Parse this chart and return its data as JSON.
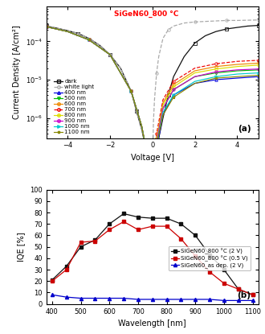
{
  "title_a": "SiGeN60_800 °C",
  "label_a": "(a)",
  "label_b": "(b)",
  "xlabel_a": "Voltage [V]",
  "ylabel_a": "Current Density [A/cm²]",
  "xlabel_b": "Wavelength [nm]",
  "ylabel_b": "IQE [%]",
  "xlim_a": [
    -5,
    5
  ],
  "ylim_a": [
    3e-07,
    0.0008
  ],
  "xlim_b": [
    380,
    1120
  ],
  "ylim_b": [
    0,
    100
  ],
  "dark_curve": {
    "V": [
      -5,
      -4.5,
      -4,
      -3.5,
      -3,
      -2.5,
      -2,
      -1.5,
      -1,
      -0.75,
      -0.5,
      -0.3,
      -0.2,
      -0.1,
      -0.05,
      0,
      0.05,
      0.1,
      0.2,
      0.3,
      0.5,
      0.75,
      1,
      1.5,
      2,
      2.5,
      3,
      3.5,
      4,
      4.5,
      5
    ],
    "J": [
      0.00025,
      0.00022,
      0.00019,
      0.00016,
      0.00012,
      8e-05,
      4.5e-05,
      2e-05,
      5e-06,
      1.5e-06,
      5e-07,
      1.5e-07,
      8e-08,
      5e-08,
      4e-08,
      3e-08,
      4e-08,
      6e-08,
      1.5e-07,
      3e-07,
      1e-06,
      4e-06,
      1.2e-05,
      4e-05,
      9e-05,
      0.00014,
      0.00018,
      0.00021,
      0.00023,
      0.00025,
      0.00026
    ],
    "color": "#111111",
    "marker": "s",
    "label": "dark",
    "linestyle": "-"
  },
  "white_curve": {
    "V": [
      -5,
      -4.5,
      -4,
      -3.5,
      -3,
      -2.5,
      -2,
      -1.5,
      -1,
      -0.75,
      -0.5,
      -0.3,
      -0.2,
      -0.1,
      -0.05,
      0,
      0.05,
      0.1,
      0.2,
      0.3,
      0.5,
      0.75,
      1,
      1.5,
      2,
      2.5,
      3,
      3.5,
      4,
      4.5,
      5
    ],
    "J": [
      0.00025,
      0.00022,
      0.00019,
      0.00016,
      0.00012,
      8e-05,
      4.5e-05,
      2e-05,
      5e-06,
      1.5e-06,
      5e-07,
      1.5e-07,
      8e-08,
      5e-08,
      4e-08,
      3e-08,
      8e-07,
      3e-06,
      1.5e-05,
      4e-05,
      0.00012,
      0.0002,
      0.00025,
      0.0003,
      0.00032,
      0.00033,
      0.00034,
      0.00035,
      0.00035,
      0.000355,
      0.00036
    ],
    "color": "#aaaaaa",
    "marker": "o",
    "label": "white light",
    "linestyle": "--"
  },
  "light_curves": [
    {
      "label": "400 nm",
      "color": "#0000dd",
      "V": [
        -5,
        -4,
        -3,
        -2,
        -1,
        -0.5,
        -0.2,
        0,
        0.2,
        0.5,
        1,
        2,
        3,
        4,
        5
      ],
      "J": [
        0.00024,
        0.00018,
        0.00011,
        4.5e-05,
        5e-06,
        6e-07,
        8e-08,
        4e-08,
        1.5e-07,
        1.2e-06,
        4e-06,
        8e-06,
        1e-05,
        1.1e-05,
        1.2e-05
      ],
      "marker": "^",
      "linestyle": "-"
    },
    {
      "label": "500 nm",
      "color": "#00bb00",
      "V": [
        -5,
        -4,
        -3,
        -2,
        -1,
        -0.5,
        -0.2,
        0,
        0.2,
        0.5,
        1,
        2,
        3,
        4,
        5
      ],
      "J": [
        0.00024,
        0.00018,
        0.00011,
        4.5e-05,
        5e-06,
        6e-07,
        8e-08,
        4e-08,
        2e-07,
        1.8e-06,
        5.5e-06,
        1.2e-05,
        1.5e-05,
        1.7e-05,
        1.8e-05
      ],
      "marker": "v",
      "linestyle": "-"
    },
    {
      "label": "600 nm",
      "color": "#ee8800",
      "V": [
        -5,
        -4,
        -3,
        -2,
        -1,
        -0.5,
        -0.2,
        0,
        0.2,
        0.5,
        1,
        2,
        3,
        4,
        5
      ],
      "J": [
        0.00024,
        0.00018,
        0.00011,
        4.5e-05,
        5e-06,
        6e-07,
        8e-08,
        4e-08,
        3e-07,
        2.5e-06,
        7.5e-06,
        1.7e-05,
        2.2e-05,
        2.5e-05,
        2.7e-05
      ],
      "marker": "o",
      "linestyle": "-"
    },
    {
      "label": "700 nm",
      "color": "#ee0000",
      "V": [
        -5,
        -4,
        -3,
        -2,
        -1,
        -0.5,
        -0.2,
        0,
        0.2,
        0.5,
        1,
        2,
        3,
        4,
        5
      ],
      "J": [
        0.00024,
        0.00018,
        0.00011,
        4.5e-05,
        5e-06,
        6e-07,
        8e-08,
        4e-08,
        4e-07,
        3e-06,
        9e-06,
        2e-05,
        2.6e-05,
        3e-05,
        3.2e-05
      ],
      "marker": "o",
      "linestyle": "--"
    },
    {
      "label": "800 nm",
      "color": "#dddd00",
      "V": [
        -5,
        -4,
        -3,
        -2,
        -1,
        -0.5,
        -0.2,
        0,
        0.2,
        0.5,
        1,
        2,
        3,
        4,
        5
      ],
      "J": [
        0.00024,
        0.00018,
        0.00011,
        4.5e-05,
        5e-06,
        6e-07,
        8e-08,
        4e-08,
        3e-07,
        2.2e-06,
        6.5e-06,
        1.5e-05,
        1.9e-05,
        2.2e-05,
        2.4e-05
      ],
      "marker": "o",
      "linestyle": "-"
    },
    {
      "label": "900 nm",
      "color": "#cc00cc",
      "V": [
        -5,
        -4,
        -3,
        -2,
        -1,
        -0.5,
        -0.2,
        0,
        0.2,
        0.5,
        1,
        2,
        3,
        4,
        5
      ],
      "J": [
        0.00024,
        0.00018,
        0.00011,
        4.5e-05,
        5e-06,
        6e-07,
        8e-08,
        4e-08,
        2.5e-07,
        1.8e-06,
        5.5e-06,
        1.2e-05,
        1.6e-05,
        1.8e-05,
        1.9e-05
      ],
      "marker": "o",
      "linestyle": "-"
    },
    {
      "label": "1000 nm",
      "color": "#00cccc",
      "V": [
        -5,
        -4,
        -3,
        -2,
        -1,
        -0.5,
        -0.2,
        0,
        0.2,
        0.5,
        1,
        2,
        3,
        4,
        5
      ],
      "J": [
        0.00024,
        0.00018,
        0.00011,
        4.5e-05,
        5e-06,
        6e-07,
        8e-08,
        4e-08,
        2e-07,
        1.4e-06,
        4e-06,
        9e-06,
        1.2e-05,
        1.4e-05,
        1.5e-05
      ],
      "marker": ">",
      "linestyle": "-"
    },
    {
      "label": "1100 nm",
      "color": "#888800",
      "V": [
        -5,
        -4,
        -3,
        -2,
        -1,
        -0.5,
        -0.2,
        0,
        0.2,
        0.5,
        1,
        2,
        3,
        4,
        5
      ],
      "J": [
        0.00024,
        0.00018,
        0.00011,
        4.5e-05,
        5e-06,
        6e-07,
        8e-08,
        4e-08,
        2e-07,
        1.2e-06,
        3.5e-06,
        8e-06,
        1.1e-05,
        1.2e-05,
        1.3e-05
      ],
      "marker": "*",
      "linestyle": "-"
    }
  ],
  "iqe_data": {
    "wavelengths": [
      400,
      450,
      500,
      550,
      600,
      650,
      700,
      750,
      800,
      850,
      900,
      950,
      1000,
      1050,
      1100
    ],
    "series": [
      {
        "label": "SiGeN60_800 °C (2 V)",
        "color": "#111111",
        "marker": "s",
        "linestyle": "-",
        "values": [
          21,
          33,
          50,
          56,
          70,
          79,
          76,
          75,
          75,
          70,
          60,
          43,
          30,
          13,
          8
        ]
      },
      {
        "label": "SiGeN60_800 °C (0.5 V)",
        "color": "#cc0000",
        "marker": "s",
        "linestyle": "-",
        "values": [
          20,
          30,
          54,
          55,
          65,
          72,
          65,
          68,
          68,
          57,
          42,
          28,
          18,
          13,
          8
        ]
      },
      {
        "label": "SiGeN60_as dep. (2 V)",
        "color": "#0000cc",
        "marker": "^",
        "linestyle": "-",
        "values": [
          8,
          6,
          5,
          5,
          5,
          5,
          4,
          4,
          4,
          4,
          4,
          4,
          3,
          3,
          3
        ]
      }
    ]
  }
}
